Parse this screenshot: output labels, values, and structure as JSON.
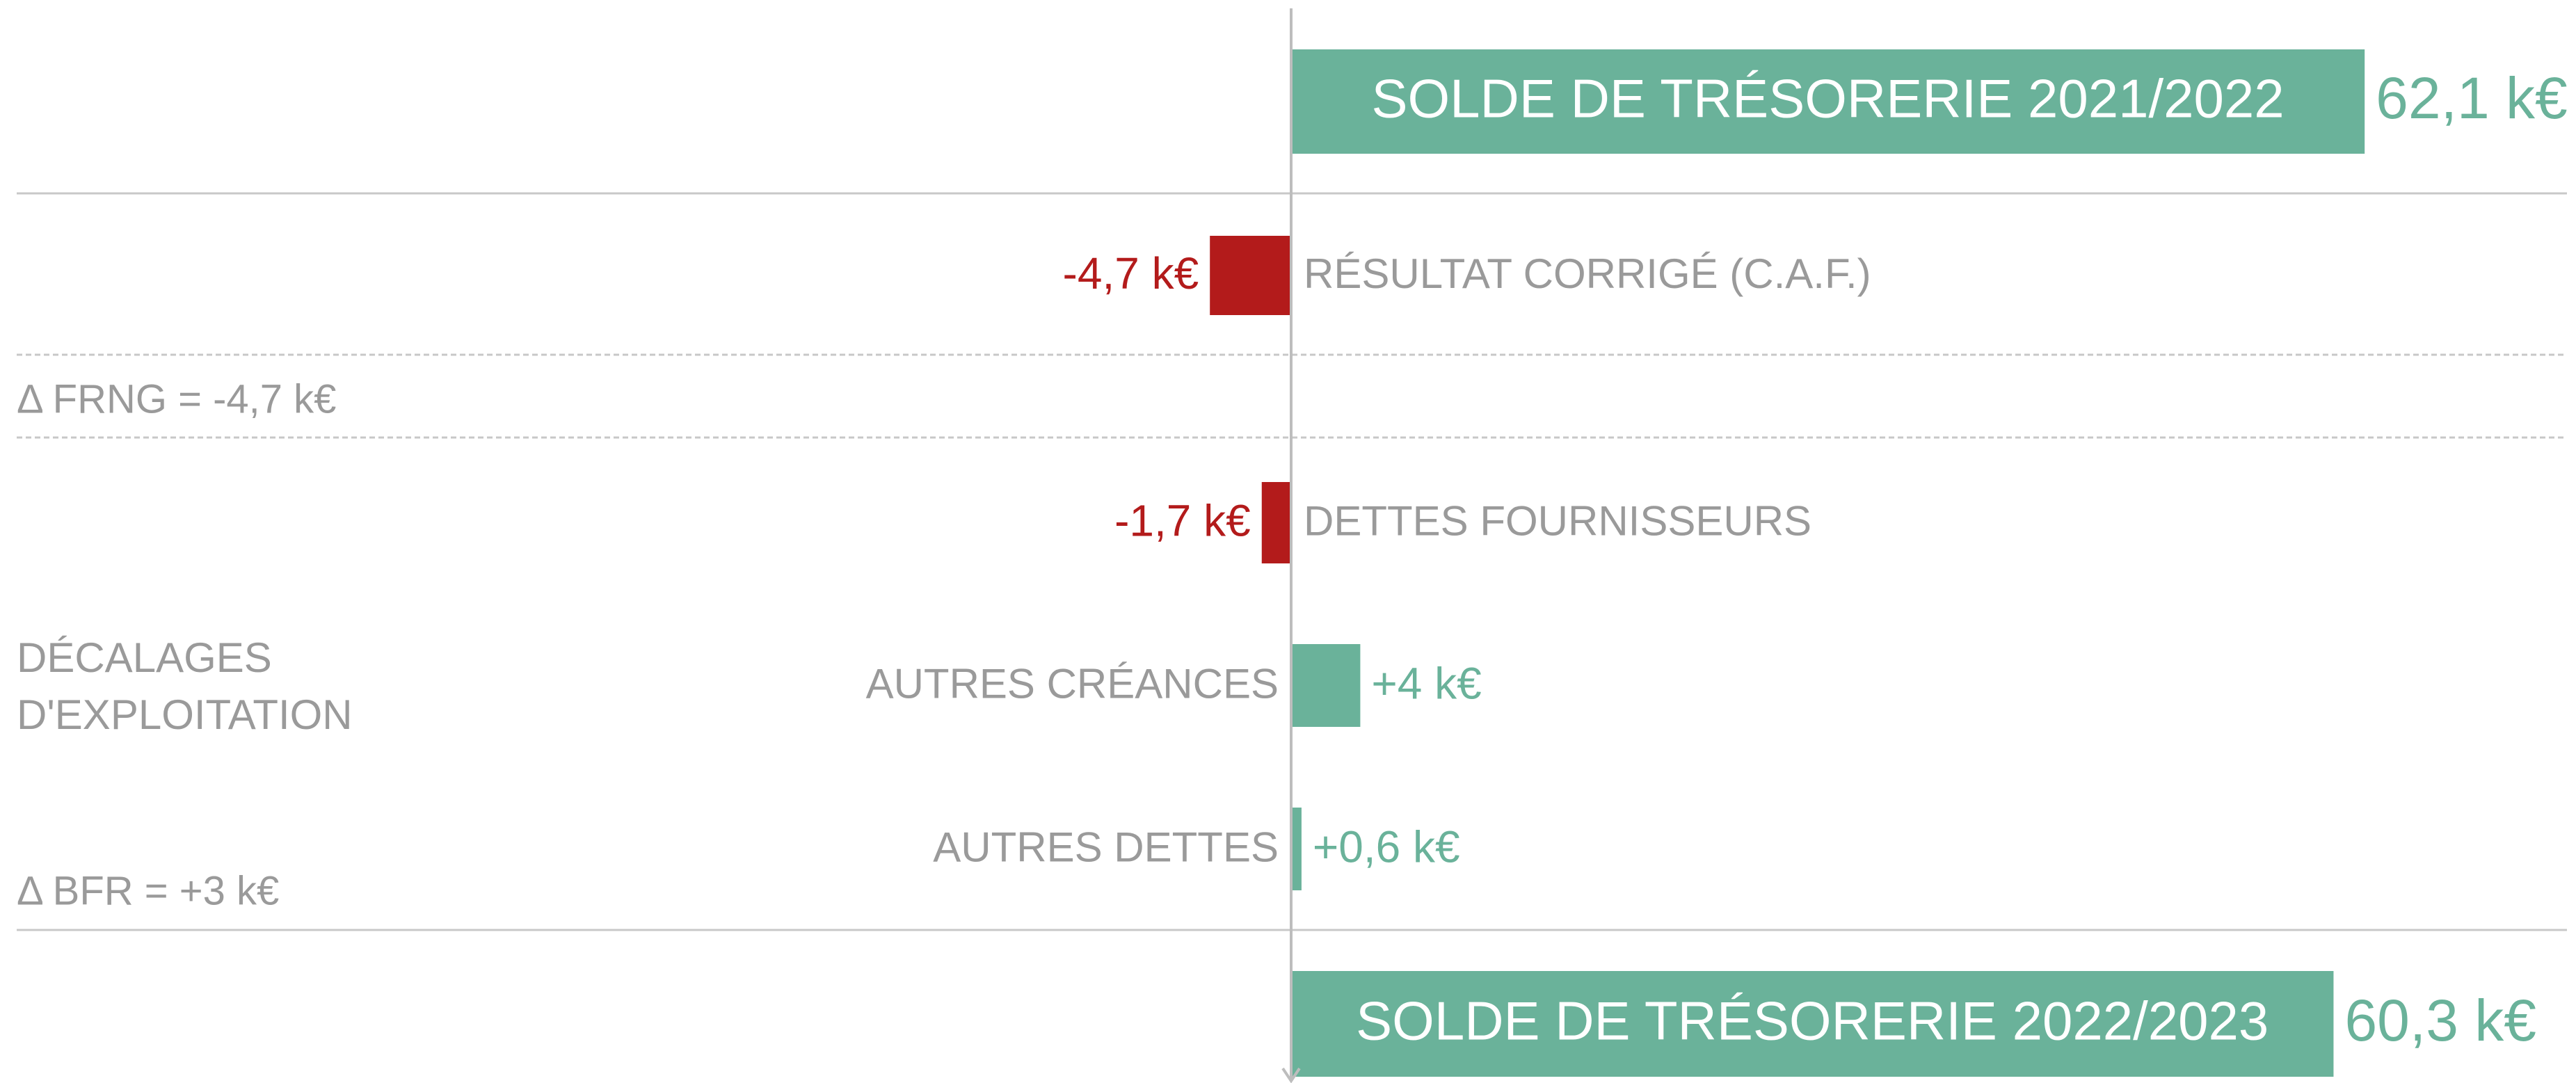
{
  "chart_data": {
    "type": "bar",
    "orientation": "horizontal",
    "categories": [
      "SOLDE DE TRÉSORERIE 2021/2022",
      "RÉSULTAT CORRIGÉ (C.A.F.)",
      "DETTES FOURNISSEURS",
      "AUTRES CRÉANCES",
      "AUTRES DETTES",
      "SOLDE DE TRÉSORERIE 2022/2023"
    ],
    "values": [
      62.1,
      -4.7,
      -1.7,
      4,
      0.6,
      60.3
    ],
    "value_labels": [
      "62,1 k€",
      "-4,7 k€",
      "-1,7 k€",
      "+4 k€",
      "+0,6 k€",
      "60,3 k€"
    ],
    "colors": [
      "#6ab29a",
      "#b31b1b",
      "#b31b1b",
      "#6ab29a",
      "#6ab29a",
      "#6ab29a"
    ],
    "annotations": [
      "Δ FRNG = -4,7 k€",
      "DÉCALAGES D'EXPLOITATION",
      "Δ BFR = +3 k€"
    ]
  }
}
